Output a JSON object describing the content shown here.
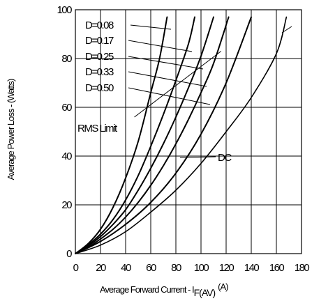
{
  "chart_data": {
    "type": "line",
    "xlabel": "Average Forward Current - I",
    "xlabel_subscript": "F(AV)",
    "xlabel_unit": "(A)",
    "ylabel": "Average Power Loss - (Watts)",
    "xlim": [
      0,
      180
    ],
    "ylim": [
      0,
      100
    ],
    "xticks": [
      0,
      20,
      40,
      60,
      80,
      100,
      120,
      140,
      160,
      180
    ],
    "yticks": [
      0,
      20,
      40,
      60,
      80,
      100
    ],
    "grid": true,
    "series": [
      {
        "name": "D=0.08",
        "x": [
          0,
          10,
          20,
          30,
          40,
          50,
          60,
          67,
          73
        ],
        "y": [
          0,
          4,
          10,
          19,
          31,
          46,
          66,
          80,
          97
        ]
      },
      {
        "name": "D=0.17",
        "x": [
          0,
          10,
          20,
          30,
          40,
          50,
          60,
          70,
          80,
          90,
          95
        ],
        "y": [
          0,
          3.5,
          8,
          14,
          22,
          32,
          44,
          57,
          71,
          86,
          97
        ]
      },
      {
        "name": "D=0.25",
        "x": [
          0,
          10,
          20,
          30,
          40,
          50,
          60,
          70,
          80,
          90,
          100,
          110
        ],
        "y": [
          0,
          3,
          7,
          12,
          18,
          26,
          35,
          45,
          56,
          68,
          81,
          97
        ]
      },
      {
        "name": "D=0.33",
        "x": [
          0,
          10,
          20,
          30,
          40,
          50,
          60,
          70,
          80,
          90,
          100,
          110,
          122
        ],
        "y": [
          0,
          2.5,
          6,
          10,
          15,
          21,
          28,
          36,
          45,
          55,
          66,
          78,
          97
        ]
      },
      {
        "name": "D=0.50",
        "x": [
          0,
          20,
          40,
          60,
          80,
          100,
          120,
          140
        ],
        "y": [
          0,
          5,
          12,
          21,
          33,
          49,
          70,
          97
        ]
      },
      {
        "name": "DC",
        "x": [
          0,
          20,
          40,
          60,
          80,
          100,
          120,
          140,
          160,
          168
        ],
        "y": [
          0,
          3.5,
          9,
          17,
          26,
          37,
          50,
          64,
          82,
          97
        ]
      },
      {
        "name": "RMS Limit",
        "x": [
          47,
          116
        ],
        "y": [
          56,
          83
        ]
      }
    ],
    "annotations": [
      {
        "text": "D=0.08",
        "series": "D=0.08"
      },
      {
        "text": "D=0.17",
        "series": "D=0.17"
      },
      {
        "text": "D=0.25",
        "series": "D=0.25"
      },
      {
        "text": "D=0.33",
        "series": "D=0.33"
      },
      {
        "text": "D=0.50",
        "series": "D=0.50"
      },
      {
        "text": "RMS Limit",
        "series": "RMS Limit"
      },
      {
        "text": "DC",
        "series": "DC"
      }
    ]
  }
}
